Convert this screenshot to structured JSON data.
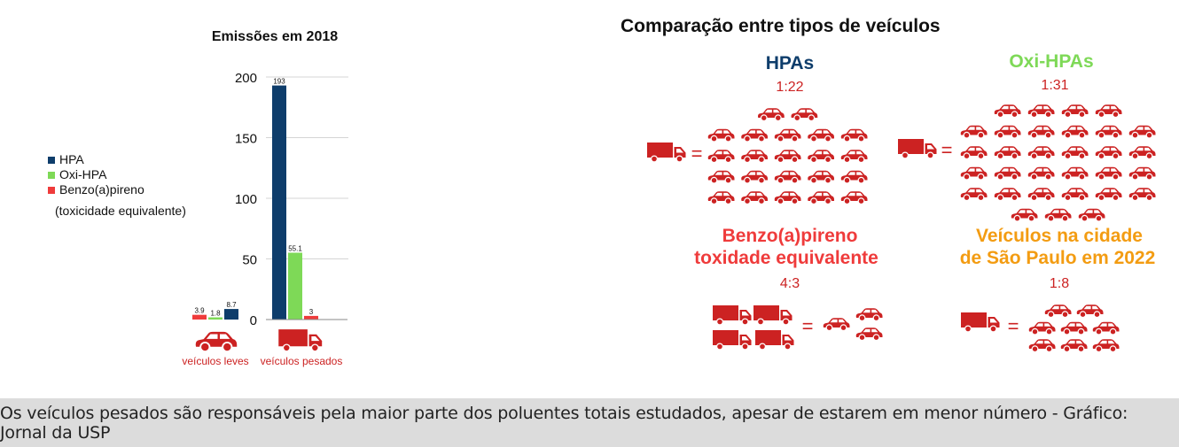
{
  "chart_data": {
    "type": "bar",
    "title": "Emissões em 2018",
    "categories": [
      "veículos leves",
      "veículos pesados"
    ],
    "series": [
      {
        "name": "HPA",
        "values": [
          8.7,
          193
        ]
      },
      {
        "name": "Oxi-HPA",
        "values": [
          1.8,
          55.1
        ]
      },
      {
        "name": "Benzo(a)pireno",
        "values": [
          3.9,
          3
        ]
      }
    ],
    "value_labels": {
      "HPA": [
        "8.7",
        "193"
      ],
      "Oxi-HPA": [
        "1.8",
        "55.1"
      ],
      "Benzo(a)pireno": [
        "3.9",
        "3"
      ]
    },
    "legend_note": "(toxicidade equivalente)",
    "y_ticks": [
      "0",
      "50",
      "100",
      "150",
      "200"
    ],
    "y_tick_values": [
      0,
      50,
      100,
      150,
      200
    ],
    "ylim": [
      0,
      200
    ],
    "grid": true,
    "legend_position": "left",
    "colors": {
      "HPA": "#0e3d6b",
      "Oxi-HPA": "#7ed957",
      "Benzo(a)pireno": "#ef3b3b",
      "vehicle": "#cc2222"
    }
  },
  "comparison": {
    "title": "Comparação entre tipos de veículos",
    "groups": [
      {
        "label": "HPAs",
        "ratio": "1:22",
        "color": "#0e3d6b",
        "trucks": 1,
        "cars": 22
      },
      {
        "label": "Oxi-HPAs",
        "ratio": "1:31",
        "color": "#7ed957",
        "trucks": 1,
        "cars": 31
      },
      {
        "label_line1": "Benzo(a)pireno",
        "label_line2": "toxidade equivalente",
        "ratio": "4:3",
        "color": "#ef3b3b",
        "trucks": 4,
        "cars": 3
      },
      {
        "label_line1": "Veículos na cidade",
        "label_line2": "de São Paulo em 2022",
        "ratio": "1:8",
        "color": "#f39c12",
        "trucks": 1,
        "cars": 8
      }
    ],
    "equals_sign": "="
  },
  "caption": "Os veículos pesados são responsáveis pela maior parte dos poluentes totais estudados, apesar de estarem em menor número - Gráfico: Jornal da USP"
}
